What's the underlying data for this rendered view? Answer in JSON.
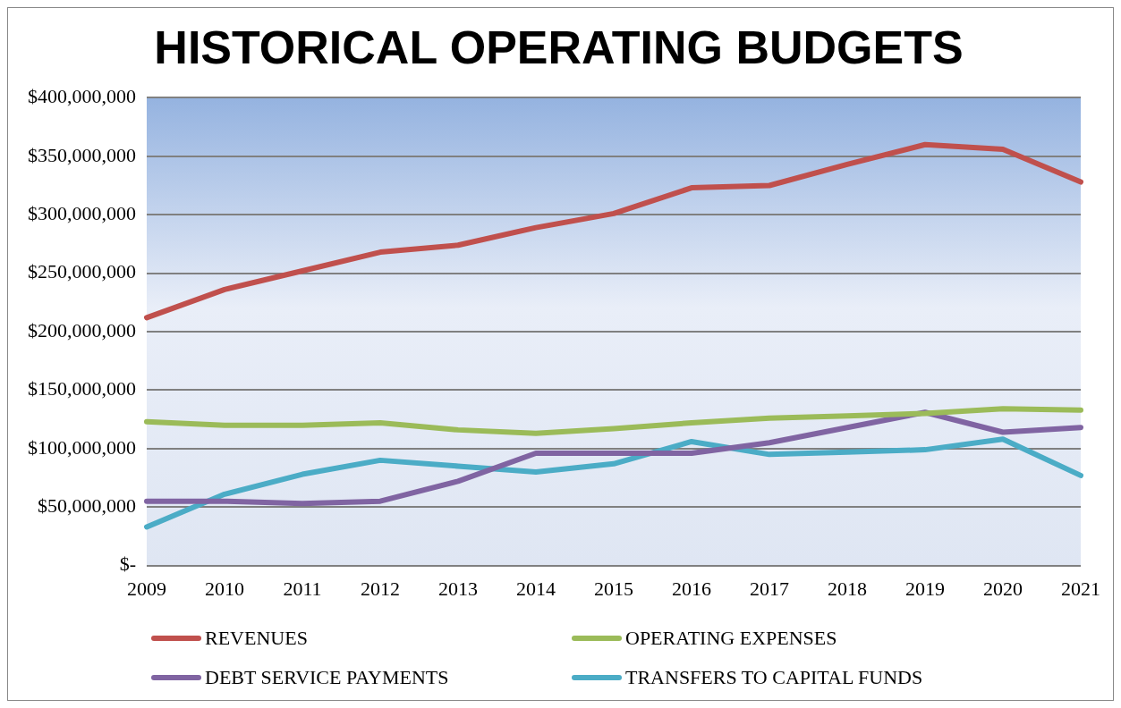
{
  "chart_data": {
    "type": "line",
    "title": "HISTORICAL OPERATING BUDGETS",
    "categories": [
      "2009",
      "2010",
      "2011",
      "2012",
      "2013",
      "2014",
      "2015",
      "2016",
      "2017",
      "2018",
      "2019",
      "2020",
      "2021"
    ],
    "series": [
      {
        "name": "REVENUES",
        "color": "#c0504d",
        "values": [
          212000000,
          236000000,
          252000000,
          268000000,
          274000000,
          289000000,
          301000000,
          323000000,
          325000000,
          343000000,
          360000000,
          356000000,
          328000000
        ]
      },
      {
        "name": "OPERATING EXPENSES",
        "color": "#9bbb59",
        "values": [
          123000000,
          120000000,
          120000000,
          122000000,
          116000000,
          113000000,
          117000000,
          122000000,
          126000000,
          128000000,
          130000000,
          134000000,
          133000000
        ]
      },
      {
        "name": "DEBT SERVICE PAYMENTS",
        "color": "#8064a2",
        "values": [
          55000000,
          55000000,
          53000000,
          55000000,
          72000000,
          96000000,
          96000000,
          96000000,
          105000000,
          118000000,
          131000000,
          114000000,
          118000000
        ]
      },
      {
        "name": "TRANSFERS TO CAPITAL FUNDS",
        "color": "#4bacc6",
        "values": [
          33000000,
          61000000,
          78000000,
          90000000,
          85000000,
          80000000,
          87000000,
          106000000,
          95000000,
          97000000,
          99000000,
          108000000,
          77000000
        ]
      }
    ],
    "ylim": [
      0,
      400000000
    ],
    "yticks": [
      {
        "value": 0,
        "label": "$-"
      },
      {
        "value": 50000000,
        "label": "$50,000,000"
      },
      {
        "value": 100000000,
        "label": "$100,000,000"
      },
      {
        "value": 150000000,
        "label": "$150,000,000"
      },
      {
        "value": 200000000,
        "label": "$200,000,000"
      },
      {
        "value": 250000000,
        "label": "$250,000,000"
      },
      {
        "value": 300000000,
        "label": "$300,000,000"
      },
      {
        "value": 350000000,
        "label": "$350,000,000"
      },
      {
        "value": 400000000,
        "label": "$400,000,000"
      }
    ],
    "grid": "y",
    "legend": "bottom",
    "marker": "none",
    "line_style": "solid"
  }
}
